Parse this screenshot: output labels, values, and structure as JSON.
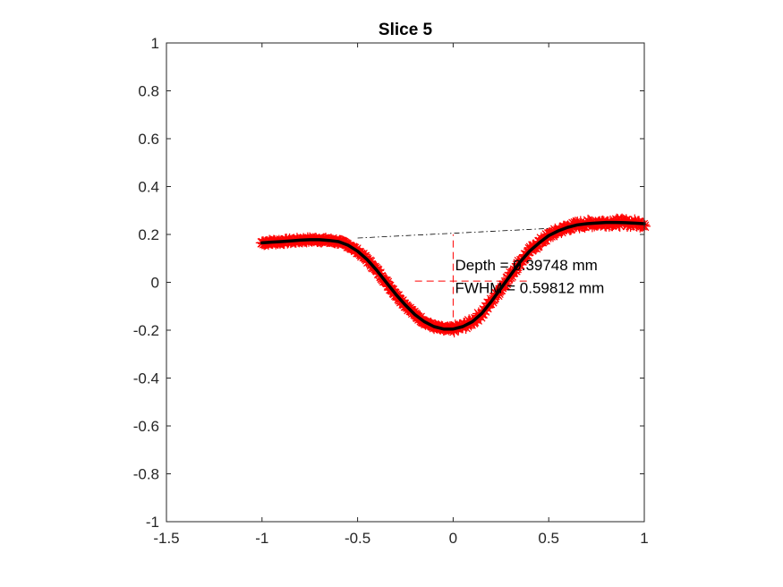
{
  "chart_data": {
    "type": "line",
    "title": "Slice 5",
    "xlabel": "",
    "ylabel": "",
    "xlim": [
      -1.5,
      1
    ],
    "ylim": [
      -1,
      1
    ],
    "xticks": [
      -1.5,
      -1,
      -0.5,
      0,
      0.5,
      1
    ],
    "yticks": [
      -1,
      -0.8,
      -0.6,
      -0.4,
      -0.2,
      0,
      0.2,
      0.4,
      0.6,
      0.8,
      1
    ],
    "x_tick_labels": [
      "-1.5",
      "-1",
      "-0.5",
      "0",
      "0.5",
      "1"
    ],
    "y_tick_labels": [
      "-1",
      "-0.8",
      "-0.6",
      "-0.4",
      "-0.2",
      "0",
      "0.2",
      "0.4",
      "0.6",
      "0.8",
      "1"
    ],
    "grid": false,
    "box": true,
    "colors": {
      "raw_points": "#ff0000",
      "fit_line": "#000000",
      "baseline": "#000000",
      "measure_lines": "#ff0000",
      "axes": "#262626"
    },
    "series": [
      {
        "name": "measured points",
        "style": "red asterisk markers",
        "x": [
          -1.0,
          -0.95,
          -0.9,
          -0.85,
          -0.8,
          -0.75,
          -0.7,
          -0.65,
          -0.6,
          -0.55,
          -0.5,
          -0.45,
          -0.4,
          -0.35,
          -0.3,
          -0.25,
          -0.2,
          -0.15,
          -0.1,
          -0.05,
          0.0,
          0.05,
          0.1,
          0.15,
          0.2,
          0.25,
          0.3,
          0.35,
          0.4,
          0.45,
          0.5,
          0.55,
          0.6,
          0.65,
          0.7,
          0.75,
          0.8,
          0.85,
          0.9,
          0.95,
          1.0
        ],
        "y": [
          0.165,
          0.168,
          0.17,
          0.173,
          0.176,
          0.178,
          0.178,
          0.175,
          0.17,
          0.155,
          0.13,
          0.095,
          0.05,
          0.0,
          -0.05,
          -0.095,
          -0.135,
          -0.165,
          -0.185,
          -0.195,
          -0.195,
          -0.185,
          -0.165,
          -0.13,
          -0.08,
          -0.025,
          0.03,
          0.085,
          0.13,
          0.165,
          0.195,
          0.215,
          0.23,
          0.24,
          0.245,
          0.248,
          0.25,
          0.25,
          0.249,
          0.247,
          0.245
        ]
      },
      {
        "name": "fitted curve",
        "style": "thick black line",
        "x": [
          -1.0,
          -0.95,
          -0.9,
          -0.85,
          -0.8,
          -0.75,
          -0.7,
          -0.65,
          -0.6,
          -0.55,
          -0.5,
          -0.45,
          -0.4,
          -0.35,
          -0.3,
          -0.25,
          -0.2,
          -0.15,
          -0.1,
          -0.05,
          0.0,
          0.05,
          0.1,
          0.15,
          0.2,
          0.25,
          0.3,
          0.35,
          0.4,
          0.45,
          0.5,
          0.55,
          0.6,
          0.65,
          0.7,
          0.75,
          0.8,
          0.85,
          0.9,
          0.95,
          1.0
        ],
        "y": [
          0.165,
          0.168,
          0.17,
          0.173,
          0.176,
          0.178,
          0.178,
          0.175,
          0.17,
          0.155,
          0.13,
          0.095,
          0.05,
          0.0,
          -0.05,
          -0.095,
          -0.135,
          -0.165,
          -0.185,
          -0.195,
          -0.195,
          -0.185,
          -0.165,
          -0.13,
          -0.08,
          -0.025,
          0.03,
          0.085,
          0.13,
          0.165,
          0.195,
          0.215,
          0.23,
          0.24,
          0.245,
          0.248,
          0.25,
          0.25,
          0.249,
          0.247,
          0.245
        ]
      },
      {
        "name": "baseline",
        "style": "thin black dash-dot line",
        "x": [
          -0.5,
          0.5
        ],
        "y": [
          0.185,
          0.225
        ]
      }
    ],
    "measure_lines": {
      "vertical": {
        "x": 0.0,
        "y_from": -0.195,
        "y_to": 0.2
      },
      "horizontal": {
        "y": 0.005,
        "x_from": -0.2,
        "x_to": 0.4
      }
    },
    "annotations": [
      {
        "text": "Depth = 0.39748 mm",
        "x": 0.01,
        "y": 0.05
      },
      {
        "text": "FWHM = 0.59812 mm",
        "x": 0.01,
        "y": -0.045
      }
    ]
  }
}
